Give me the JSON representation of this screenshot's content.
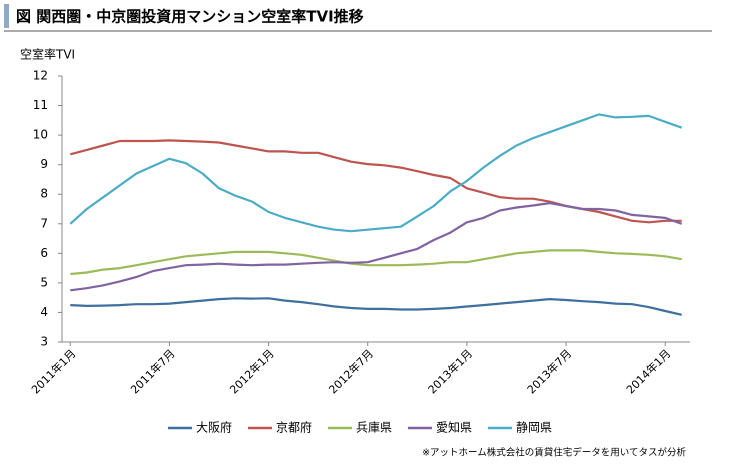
{
  "chart_data": {
    "type": "line",
    "title": "図 関西圏・中京圏投資用マンション空室率TVI推移",
    "y_label": "空室率TVI",
    "note": "※アットホーム株式会社の賃貸住宅データを用いてタスが分析",
    "categories": [
      "2011年1月",
      null,
      null,
      null,
      null,
      null,
      "2011年7月",
      null,
      null,
      null,
      null,
      null,
      "2012年1月",
      null,
      null,
      null,
      null,
      null,
      "2012年7月",
      null,
      null,
      null,
      null,
      null,
      "2013年1月",
      null,
      null,
      null,
      null,
      null,
      "2013年7月",
      null,
      null,
      null,
      null,
      null,
      "2014年1月",
      null
    ],
    "ylim": [
      3,
      12
    ],
    "yticks": [
      3,
      4,
      5,
      6,
      7,
      8,
      9,
      10,
      11,
      12
    ],
    "series": [
      {
        "name": "大阪府",
        "color": "#3e6f9e",
        "values": [
          4.25,
          4.22,
          4.23,
          4.25,
          4.28,
          4.28,
          4.3,
          4.35,
          4.4,
          4.45,
          4.48,
          4.47,
          4.48,
          4.4,
          4.35,
          4.28,
          4.2,
          4.15,
          4.12,
          4.12,
          4.1,
          4.1,
          4.12,
          4.15,
          4.2,
          4.25,
          4.3,
          4.35,
          4.4,
          4.45,
          4.42,
          4.38,
          4.35,
          4.3,
          4.28,
          4.18,
          4.05,
          3.92
        ]
      },
      {
        "name": "京都府",
        "color": "#be5450",
        "values": [
          9.35,
          9.5,
          9.65,
          9.8,
          9.8,
          9.8,
          9.82,
          9.8,
          9.78,
          9.75,
          9.65,
          9.55,
          9.45,
          9.45,
          9.4,
          9.4,
          9.25,
          9.1,
          9.02,
          8.98,
          8.9,
          8.78,
          8.65,
          8.55,
          8.2,
          8.05,
          7.9,
          7.85,
          7.85,
          7.75,
          7.6,
          7.5,
          7.4,
          7.25,
          7.1,
          7.05,
          7.1,
          7.1
        ]
      },
      {
        "name": "兵庫県",
        "color": "#9bbb59",
        "values": [
          5.3,
          5.35,
          5.45,
          5.5,
          5.6,
          5.7,
          5.8,
          5.9,
          5.95,
          6.0,
          6.05,
          6.05,
          6.05,
          6.0,
          5.95,
          5.85,
          5.75,
          5.65,
          5.6,
          5.6,
          5.6,
          5.62,
          5.65,
          5.7,
          5.7,
          5.8,
          5.9,
          6.0,
          6.05,
          6.1,
          6.1,
          6.1,
          6.05,
          6.0,
          5.98,
          5.95,
          5.9,
          5.8
        ]
      },
      {
        "name": "愛知県",
        "color": "#8064a2",
        "values": [
          4.75,
          4.82,
          4.92,
          5.05,
          5.2,
          5.4,
          5.5,
          5.6,
          5.62,
          5.65,
          5.62,
          5.6,
          5.62,
          5.62,
          5.65,
          5.68,
          5.7,
          5.68,
          5.7,
          5.85,
          6.0,
          6.15,
          6.45,
          6.7,
          7.05,
          7.2,
          7.45,
          7.55,
          7.62,
          7.7,
          7.6,
          7.5,
          7.5,
          7.45,
          7.3,
          7.25,
          7.2,
          7.0
        ]
      },
      {
        "name": "静岡県",
        "color": "#4bacc6",
        "values": [
          7.0,
          7.5,
          7.9,
          8.3,
          8.7,
          8.95,
          9.2,
          9.05,
          8.7,
          8.2,
          7.95,
          7.75,
          7.4,
          7.2,
          7.05,
          6.9,
          6.8,
          6.75,
          6.8,
          6.85,
          6.9,
          7.25,
          7.6,
          8.1,
          8.45,
          8.9,
          9.3,
          9.65,
          9.9,
          10.1,
          10.3,
          10.5,
          10.7,
          10.6,
          10.62,
          10.65,
          10.45,
          10.25
        ]
      }
    ]
  }
}
